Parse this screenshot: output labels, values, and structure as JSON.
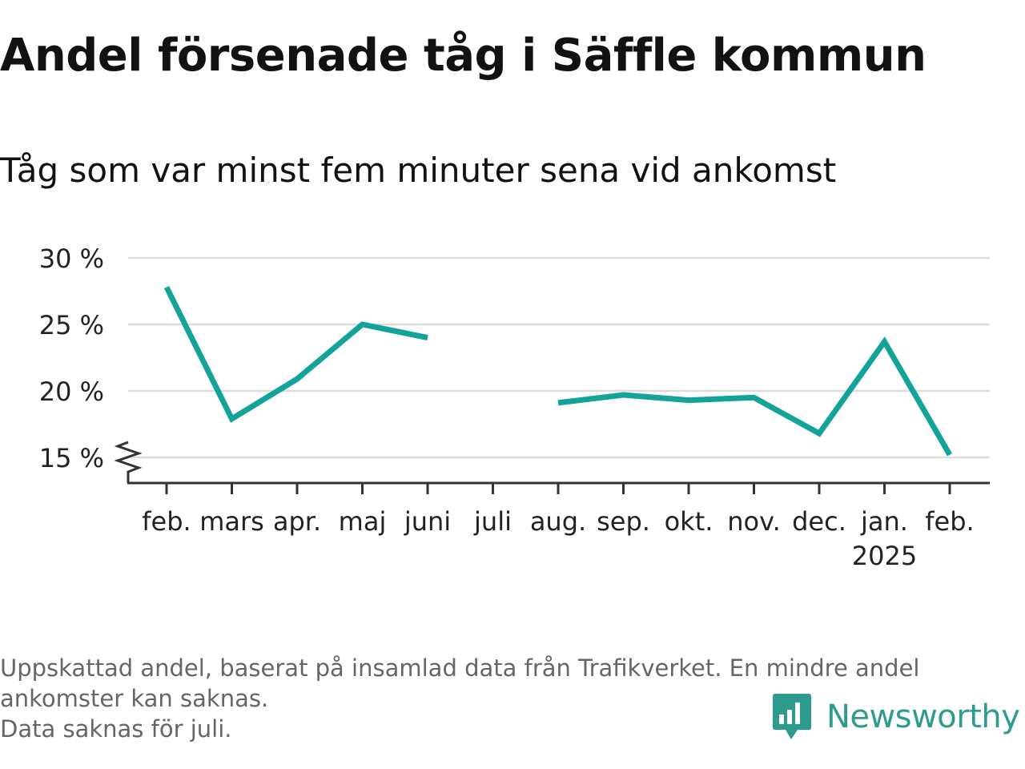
{
  "title": "Andel försenade tåg i Säffle kommun",
  "subtitle": "Tåg som var minst fem minuter sena vid ankomst",
  "footnote": {
    "line1": "Uppskattad andel, baserat på insamlad data från Trafikverket. En mindre andel",
    "line2": "ankomster kan saknas.",
    "line3": "Data saknas för juli."
  },
  "brand": {
    "name": "Newsworthy",
    "color": "#2e9b8f",
    "icon": "bar-chart-speech-bubble-icon"
  },
  "colors": {
    "line": "#13a39a",
    "grid": "#dcdcdc",
    "axis": "#333333"
  },
  "chart_data": {
    "type": "line",
    "title": "Andel försenade tåg i Säffle kommun",
    "subtitle": "Tåg som var minst fem minuter sena vid ankomst",
    "xlabel": "",
    "ylabel": "",
    "categories": [
      "feb.",
      "mars",
      "apr.",
      "maj",
      "juni",
      "juli",
      "aug.",
      "sep.",
      "okt.",
      "nov.",
      "dec.",
      "jan.",
      "feb."
    ],
    "category_sublabels": [
      "",
      "",
      "",
      "",
      "",
      "",
      "",
      "",
      "",
      "",
      "",
      "2025",
      ""
    ],
    "series": [
      {
        "values": [
          27.8,
          17.9,
          20.9,
          25.0,
          24.0,
          null,
          19.1,
          19.7,
          19.3,
          19.5,
          16.8,
          23.7,
          15.2
        ]
      }
    ],
    "yticks": [
      15,
      20,
      25,
      30
    ],
    "ytick_labels": [
      "15 %",
      "20 %",
      "25 %",
      "30 %"
    ],
    "ylim": [
      13.2,
      30
    ],
    "y_axis_break": true,
    "grid": true,
    "legend": "none"
  }
}
